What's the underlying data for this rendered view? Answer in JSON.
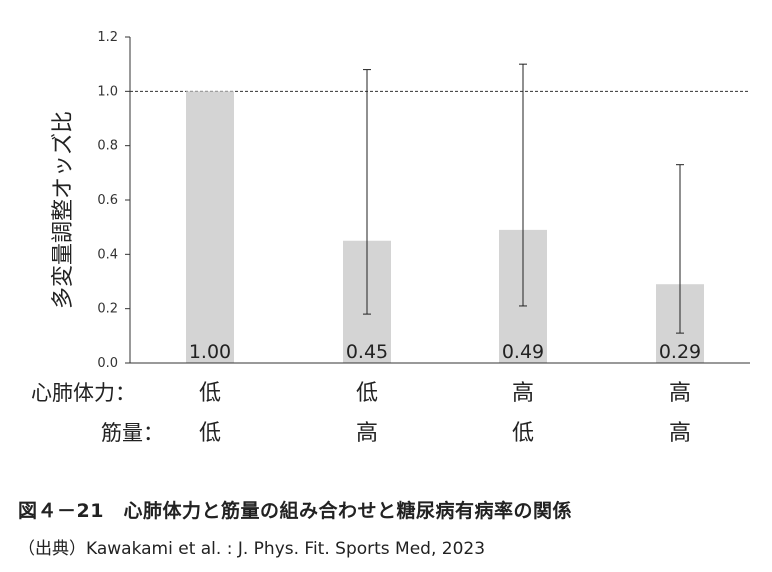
{
  "chart_data": {
    "type": "bar",
    "ylabel": "多変量調整オッズ比",
    "ylim": [
      0,
      1.2
    ],
    "yticks": [
      "0.0",
      "0.2",
      "0.4",
      "0.6",
      "0.8",
      "1.0",
      "1.2"
    ],
    "reference_line": 1.0,
    "bar_color": "#d4d4d4",
    "row_labels": [
      "心肺体力：",
      "筋量："
    ],
    "categories": [
      {
        "fitness": "低",
        "muscle": "低"
      },
      {
        "fitness": "低",
        "muscle": "高"
      },
      {
        "fitness": "高",
        "muscle": "低"
      },
      {
        "fitness": "高",
        "muscle": "高"
      }
    ],
    "values": [
      1.0,
      0.45,
      0.49,
      0.29
    ],
    "value_labels": [
      "1.00",
      "0.45",
      "0.49",
      "0.29"
    ],
    "error_low": [
      null,
      0.18,
      0.21,
      0.11
    ],
    "error_high": [
      null,
      1.08,
      1.1,
      0.73
    ]
  },
  "caption": {
    "title": "図４－21　心肺体力と筋量の組み合わせと糖尿病有病率の関係",
    "source": "（出典）Kawakami et al. : J. Phys. Fit. Sports Med, 2023"
  }
}
